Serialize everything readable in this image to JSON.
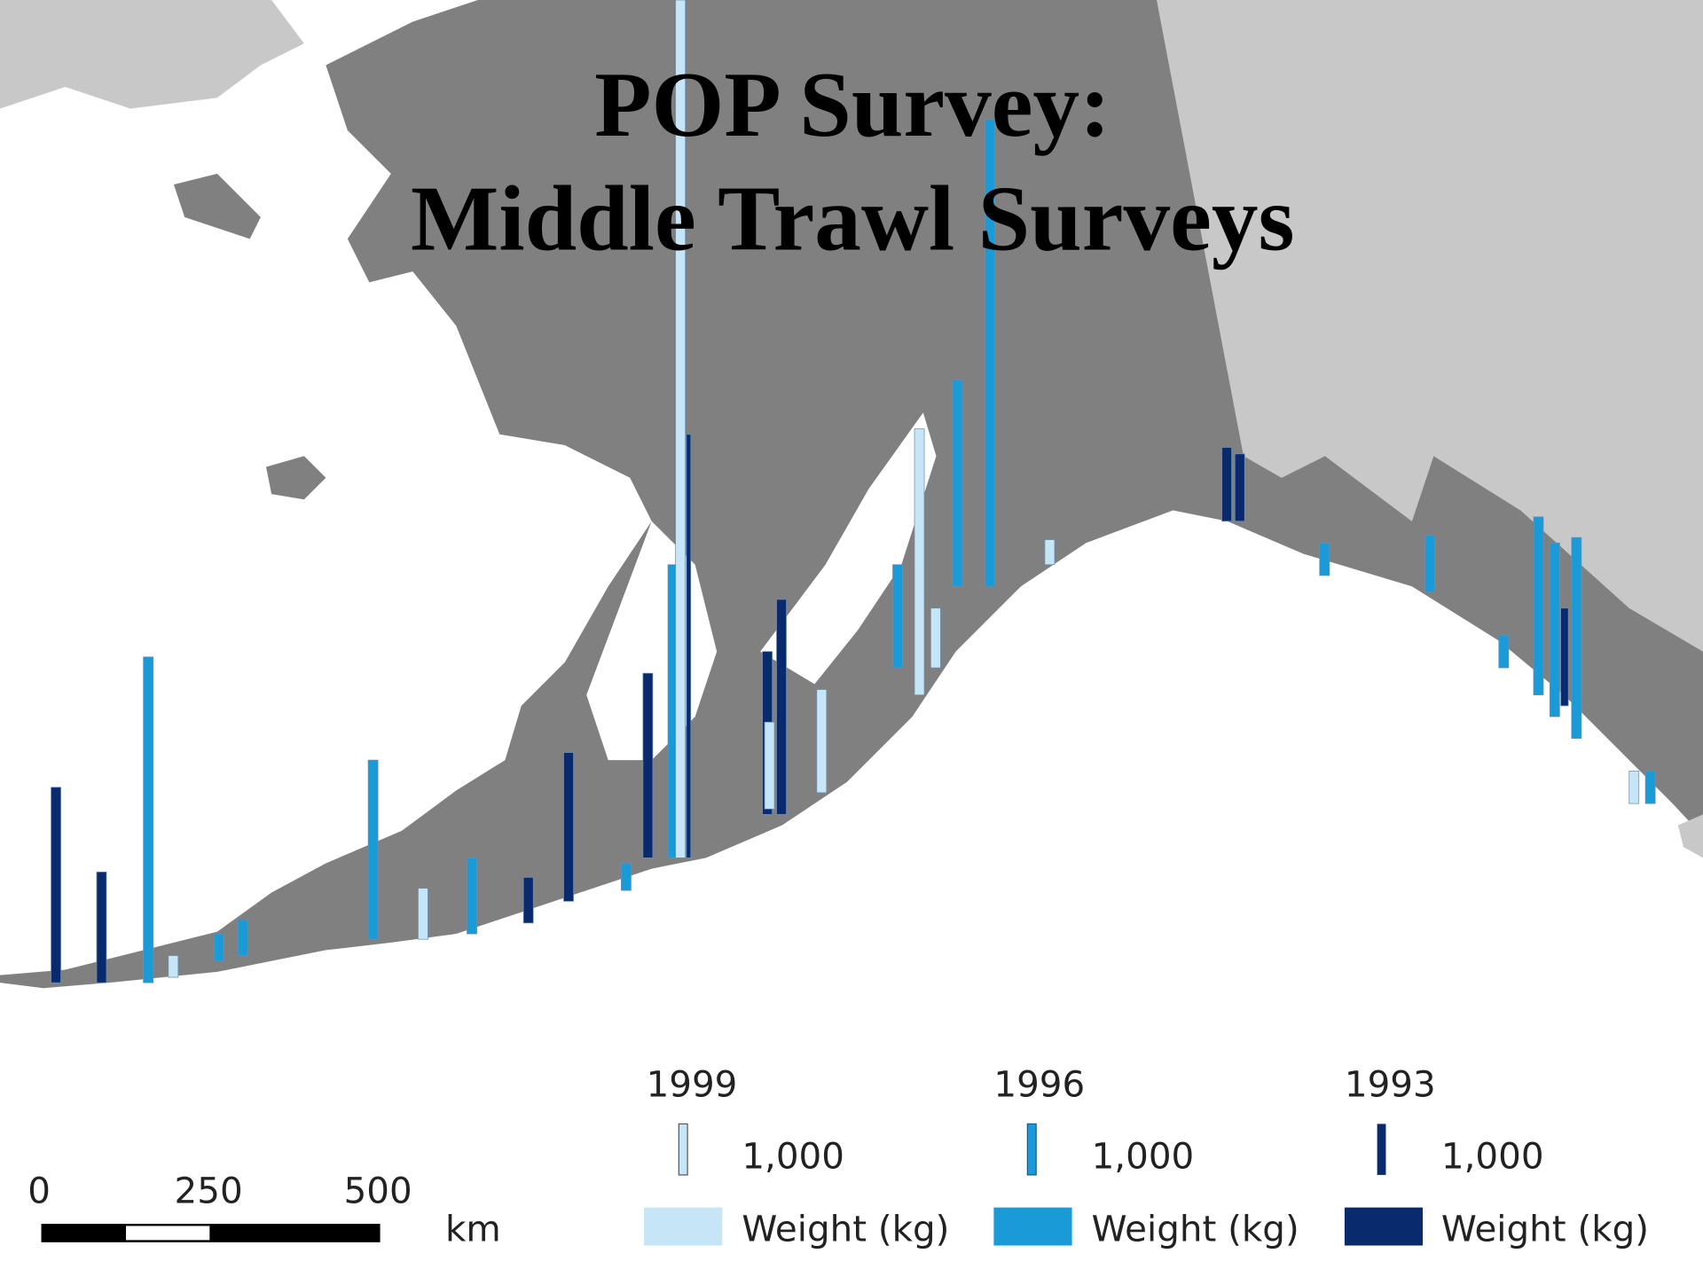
{
  "title": {
    "lines": [
      "POP Survey:",
      "Middle Trawl Surveys"
    ]
  },
  "legend": {
    "items": [
      {
        "year": "1999",
        "size_label": "1,000",
        "label": "Weight (kg)"
      },
      {
        "year": "1996",
        "size_label": "1,000",
        "label": "Weight (kg)"
      },
      {
        "year": "1993",
        "size_label": "1,000",
        "label": "Weight (kg)"
      }
    ]
  },
  "scale_bar": {
    "ticks": [
      "0",
      "250",
      "500"
    ],
    "unit": "km"
  }
}
